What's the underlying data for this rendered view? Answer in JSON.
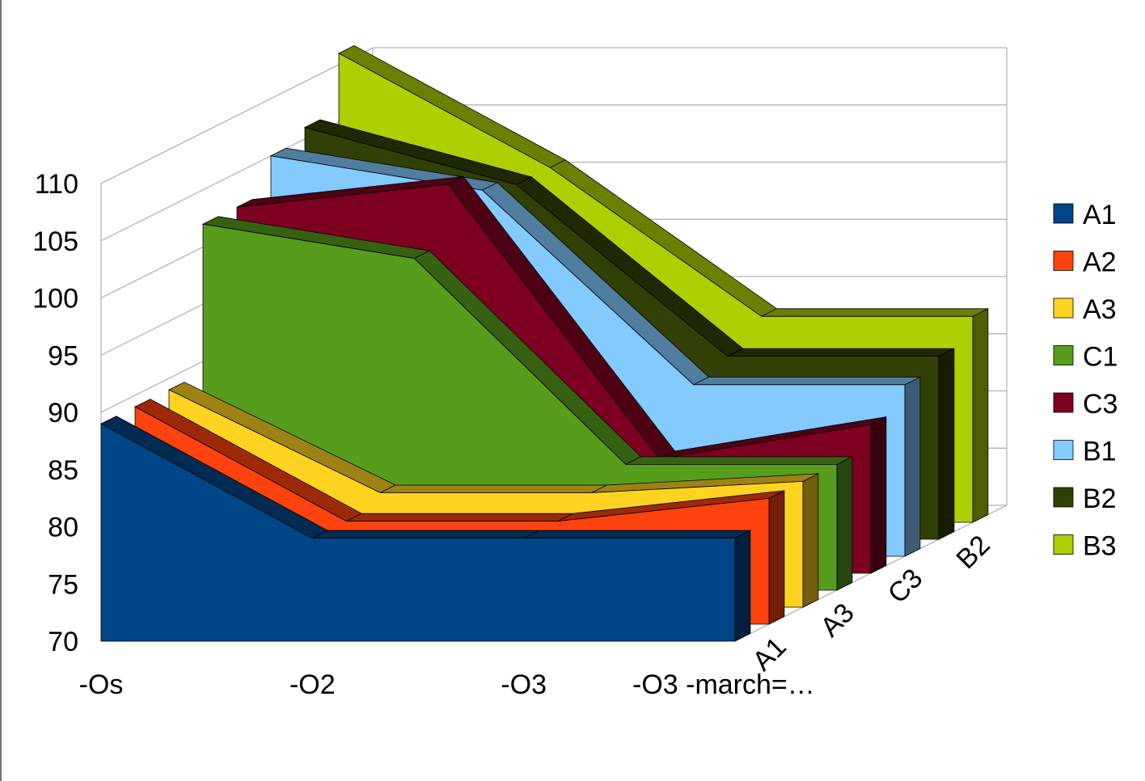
{
  "chart_data": {
    "type": "area",
    "variant": "3d-deep",
    "title": "",
    "xlabel": "",
    "ylabel": "",
    "ylim": [
      70,
      110
    ],
    "y_ticks": [
      "70",
      "75",
      "80",
      "85",
      "90",
      "95",
      "100",
      "105",
      "110"
    ],
    "categories": [
      "-Os",
      "-O2",
      "-O3",
      "-O3 -march=…"
    ],
    "depth_labels": [
      "A1",
      "A3",
      "C3",
      "B2"
    ],
    "grid": true,
    "legend_position": "right",
    "series": [
      {
        "name": "A1",
        "color": "#004586",
        "values": [
          89,
          79,
          79,
          79
        ]
      },
      {
        "name": "A2",
        "color": "#ff420e",
        "values": [
          89,
          79,
          79,
          81
        ]
      },
      {
        "name": "A3",
        "color": "#ffd320",
        "values": [
          89,
          80,
          80,
          81
        ]
      },
      {
        "name": "C1",
        "color": "#579d1c",
        "values": [
          102,
          99,
          81,
          81
        ]
      },
      {
        "name": "C3",
        "color": "#7e0021",
        "values": [
          102,
          104,
          80,
          83
        ]
      },
      {
        "name": "B1",
        "color": "#83caff",
        "values": [
          105,
          102,
          85,
          85
        ]
      },
      {
        "name": "B2",
        "color": "#314004",
        "values": [
          106,
          101,
          86,
          86
        ]
      },
      {
        "name": "B3",
        "color": "#aecf00",
        "values": [
          111,
          101,
          88,
          88
        ]
      }
    ]
  }
}
